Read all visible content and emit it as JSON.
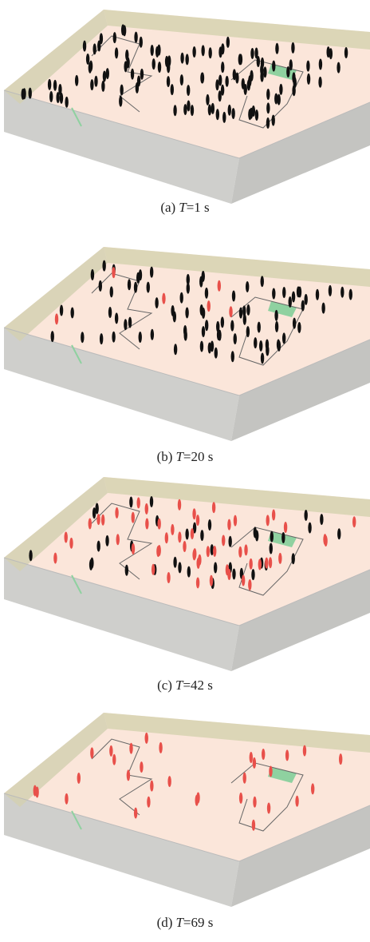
{
  "panels": [
    {
      "label": "(a)",
      "symbol": "T",
      "value": "=1 s"
    },
    {
      "label": "(b)",
      "symbol": "T",
      "value": "=20 s"
    },
    {
      "label": "(c)",
      "symbol": "T",
      "value": "=42 s"
    },
    {
      "label": "(d)",
      "symbol": "T",
      "value": "=69 s"
    }
  ]
}
